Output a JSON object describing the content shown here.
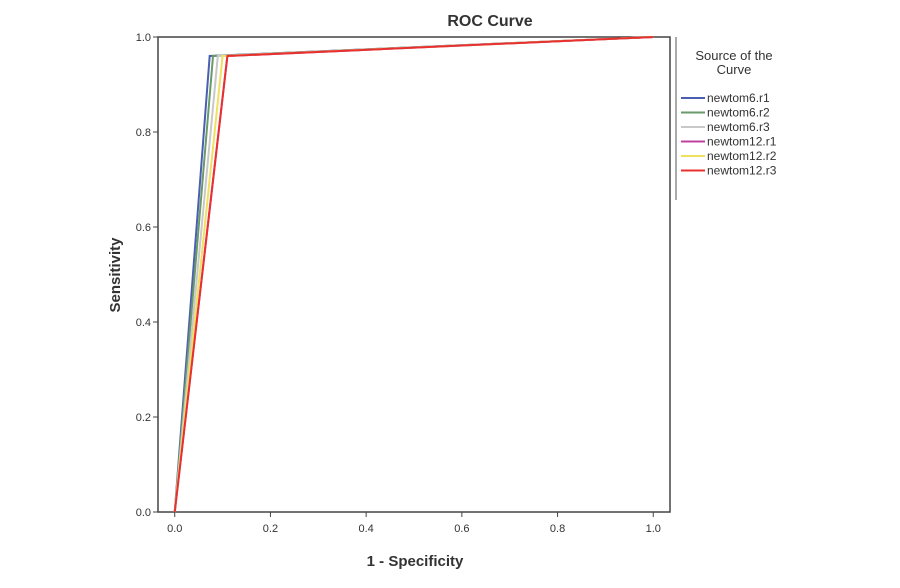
{
  "chart_data": {
    "type": "line",
    "title": "ROC Curve",
    "xlabel": "1 - Specificity",
    "ylabel": "Sensitivity",
    "xlim": [
      -0.035,
      1.035
    ],
    "ylim": [
      0,
      1
    ],
    "xticks": [
      "0.0",
      "0.2",
      "0.4",
      "0.6",
      "0.8",
      "1.0"
    ],
    "yticks": [
      "0.0",
      "0.2",
      "0.4",
      "0.6",
      "0.8",
      "1.0"
    ],
    "grid": false,
    "legend_title": "Source of the Curve",
    "legend_placement": "right",
    "series": [
      {
        "name": "newtom6.r1",
        "color": "#4a5fb0",
        "x": [
          0,
          0.073,
          1
        ],
        "y": [
          0,
          0.96,
          1
        ]
      },
      {
        "name": "newtom6.r2",
        "color": "#6a9a6a",
        "x": [
          0,
          0.08,
          1
        ],
        "y": [
          0,
          0.96,
          1
        ]
      },
      {
        "name": "newtom6.r3",
        "color": "#c8c8c8",
        "x": [
          0,
          0.09,
          1
        ],
        "y": [
          0,
          0.96,
          1
        ]
      },
      {
        "name": "newtom12.r1",
        "color": "#c040a0",
        "x": [
          0,
          0.11,
          1
        ],
        "y": [
          0,
          0.96,
          1
        ]
      },
      {
        "name": "newtom12.r2",
        "color": "#f0e060",
        "x": [
          0,
          0.1,
          1
        ],
        "y": [
          0,
          0.96,
          1
        ]
      },
      {
        "name": "newtom12.r3",
        "color": "#e83030",
        "x": [
          0,
          0.11,
          1
        ],
        "y": [
          0,
          0.96,
          1
        ]
      }
    ]
  }
}
